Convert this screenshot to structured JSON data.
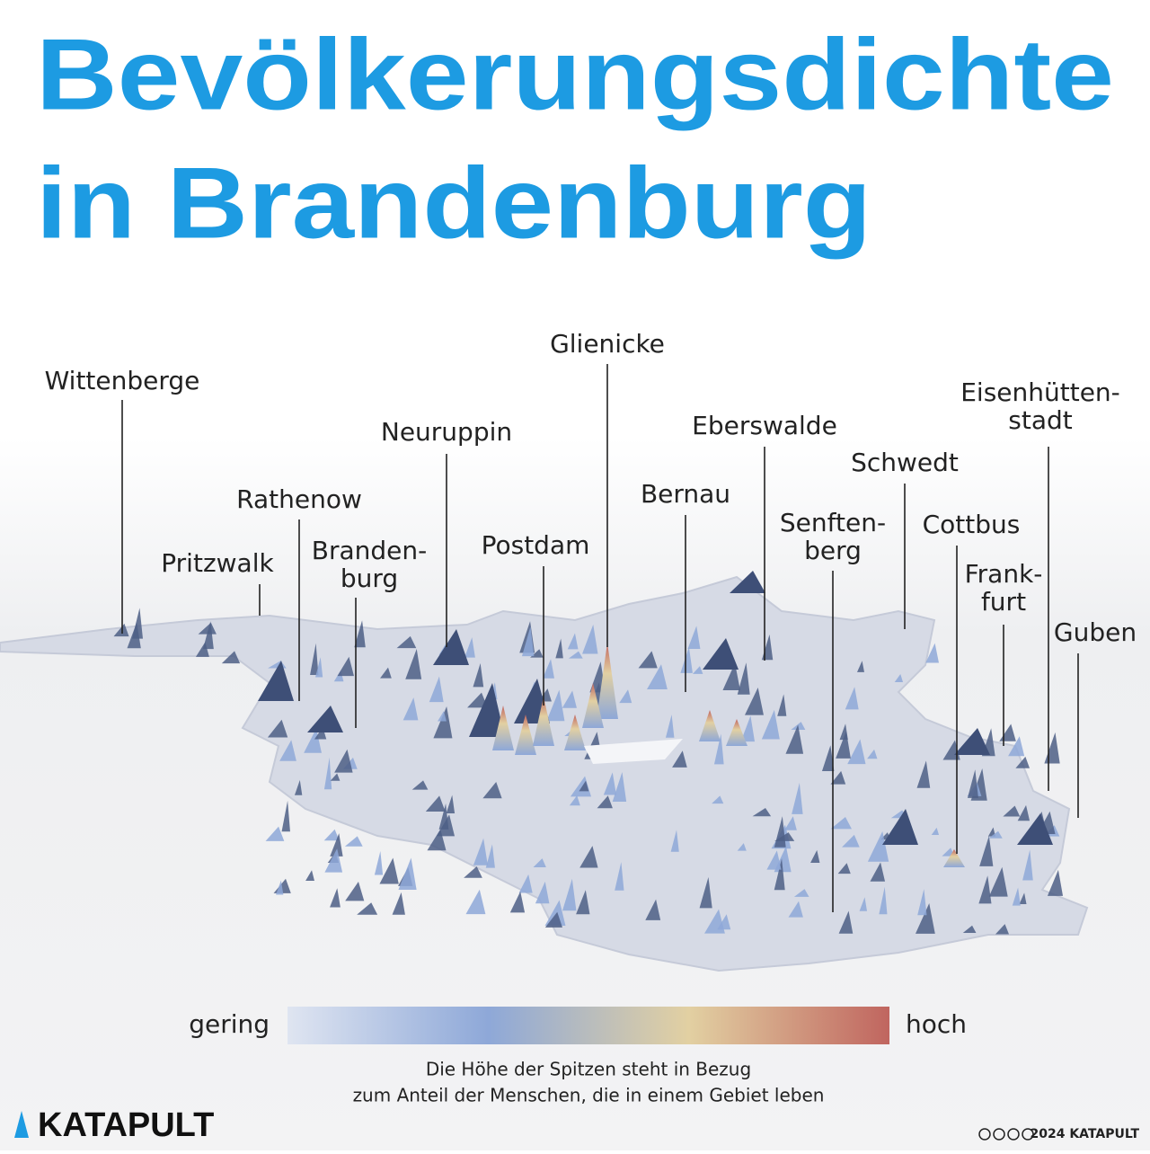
{
  "title": [
    "Bevölkerungsdichte",
    "in Brandenburg"
  ],
  "cities": [
    {
      "lines": [
        "Wittenberge"
      ]
    },
    {
      "lines": [
        "Pritzwalk"
      ]
    },
    {
      "lines": [
        "Rathenow"
      ]
    },
    {
      "lines": [
        "Branden-",
        "burg"
      ]
    },
    {
      "lines": [
        "Neuruppin"
      ]
    },
    {
      "lines": [
        "Postdam"
      ]
    },
    {
      "lines": [
        "Glienicke"
      ]
    },
    {
      "lines": [
        "Bernau"
      ]
    },
    {
      "lines": [
        "Eberswalde"
      ]
    },
    {
      "lines": [
        "Senften-",
        "berg"
      ]
    },
    {
      "lines": [
        "Schwedt"
      ]
    },
    {
      "lines": [
        "Cottbus"
      ]
    },
    {
      "lines": [
        "Frank-",
        "furt"
      ]
    },
    {
      "lines": [
        "Eisenhütten-",
        "stadt"
      ]
    },
    {
      "lines": [
        "Guben"
      ]
    }
  ],
  "legend": {
    "low": "gering",
    "high": "hoch",
    "colors": [
      "#dfe5f1",
      "#8ea8d8",
      "#e2d0a2",
      "#c0655f"
    ]
  },
  "caption": [
    "Die Höhe der Spitzen steht in Bezug",
    "zum Anteil der Menschen, die in einem Gebiet leben"
  ],
  "footer": {
    "logo": "KATAPULT",
    "copyright": "2024 KATAPULT"
  }
}
